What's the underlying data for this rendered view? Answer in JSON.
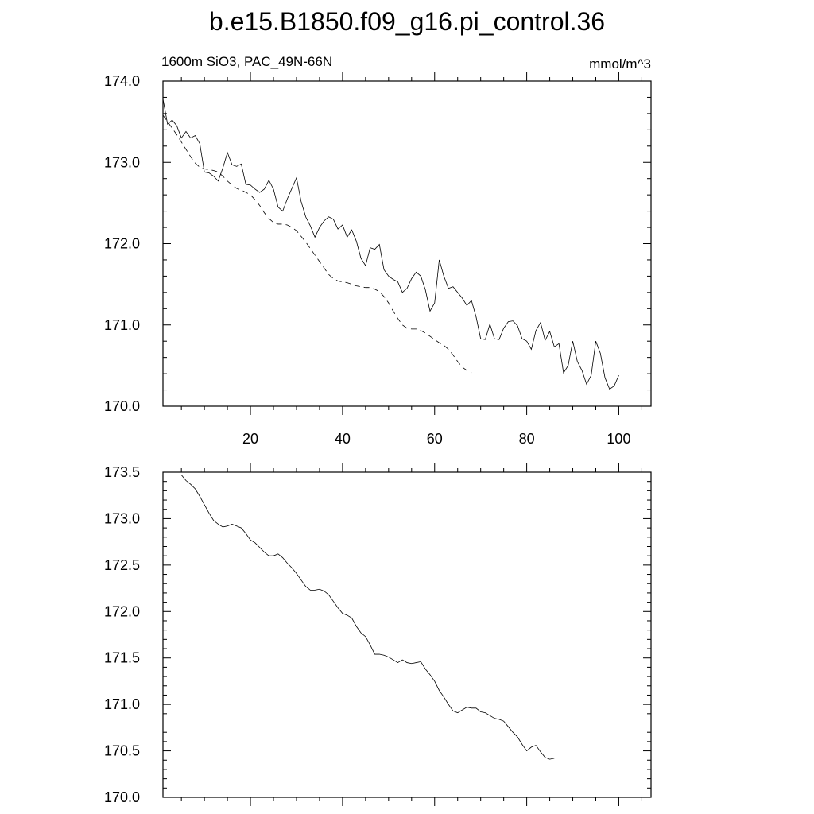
{
  "title": "b.e15.B1850.f09_g16.pi_control.36",
  "chart_data": [
    {
      "type": "line",
      "subtitle_left": "1600m SiO3, PAC_49N-66N",
      "subtitle_right": "mmol/m^3",
      "xlim": [
        1,
        107
      ],
      "ylim": [
        170.0,
        174.0
      ],
      "x_ticks": [
        20,
        40,
        60,
        80,
        100
      ],
      "x_tick_labels": [
        "20",
        "40",
        "60",
        "80",
        "100"
      ],
      "y_ticks": [
        170.0,
        171.0,
        172.0,
        173.0,
        174.0
      ],
      "y_tick_labels": [
        "170.0",
        "171.0",
        "172.0",
        "173.0",
        "174.0"
      ],
      "y_minor_step": 0.2,
      "series": [
        {
          "style": "solid",
          "x_start": 1,
          "values": [
            173.78,
            173.47,
            173.52,
            173.45,
            173.3,
            173.38,
            173.3,
            173.33,
            173.23,
            172.88,
            172.87,
            172.83,
            172.77,
            172.93,
            173.12,
            172.97,
            172.95,
            172.98,
            172.73,
            172.72,
            172.67,
            172.63,
            172.67,
            172.78,
            172.67,
            172.45,
            172.4,
            172.55,
            172.68,
            172.81,
            172.52,
            172.33,
            172.22,
            172.08,
            172.2,
            172.28,
            172.33,
            172.3,
            172.18,
            172.23,
            172.08,
            172.17,
            172.03,
            171.82,
            171.73,
            171.95,
            171.93,
            171.99,
            171.68,
            171.6,
            171.56,
            171.53,
            171.4,
            171.45,
            171.57,
            171.65,
            171.6,
            171.43,
            171.17,
            171.27,
            171.8,
            171.6,
            171.45,
            171.47,
            171.4,
            171.33,
            171.24,
            171.3,
            171.1,
            170.83,
            170.82,
            171.01,
            170.83,
            170.82,
            170.96,
            171.04,
            171.05,
            170.99,
            170.83,
            170.8,
            170.7,
            170.93,
            171.03,
            170.81,
            170.92,
            170.73,
            170.77,
            170.41,
            170.5,
            170.8,
            170.55,
            170.44,
            170.27,
            170.38,
            170.8,
            170.65,
            170.35,
            170.21,
            170.25,
            170.38
          ]
        },
        {
          "style": "dashed",
          "x_start": 1,
          "values": [
            173.58,
            173.5,
            173.42,
            173.34,
            173.25,
            173.16,
            173.07,
            172.99,
            172.94,
            172.92,
            172.91,
            172.9,
            172.88,
            172.83,
            172.77,
            172.72,
            172.68,
            172.66,
            172.63,
            172.6,
            172.54,
            172.47,
            172.38,
            172.31,
            172.26,
            172.24,
            172.24,
            172.23,
            172.2,
            172.16,
            172.09,
            172.02,
            171.94,
            171.86,
            171.78,
            171.7,
            171.62,
            171.57,
            171.54,
            171.53,
            171.52,
            171.5,
            171.48,
            171.47,
            171.46,
            171.46,
            171.44,
            171.41,
            171.35,
            171.27,
            171.17,
            171.08,
            171.0,
            170.96,
            170.95,
            170.95,
            170.93,
            170.9,
            170.86,
            170.82,
            170.78,
            170.75,
            170.7,
            170.63,
            170.55,
            170.48,
            170.44,
            170.41
          ]
        }
      ]
    },
    {
      "type": "line",
      "xlim": [
        1,
        107
      ],
      "ylim": [
        170.0,
        173.5
      ],
      "x_ticks": [
        20,
        40,
        60,
        80,
        100
      ],
      "y_ticks": [
        170.0,
        170.5,
        171.0,
        171.5,
        172.0,
        172.5,
        173.0,
        173.5
      ],
      "y_tick_labels": [
        "170.0",
        "170.5",
        "171.0",
        "171.5",
        "172.0",
        "172.5",
        "173.0",
        "173.5"
      ],
      "y_minor_step": 0.1,
      "series": [
        {
          "style": "solid",
          "x_start": 5,
          "values": [
            173.47,
            173.41,
            173.37,
            173.32,
            173.24,
            173.15,
            173.06,
            172.98,
            172.94,
            172.91,
            172.92,
            172.94,
            172.92,
            172.9,
            172.84,
            172.77,
            172.74,
            172.69,
            172.64,
            172.6,
            172.6,
            172.62,
            172.58,
            172.52,
            172.47,
            172.41,
            172.34,
            172.27,
            172.23,
            172.23,
            172.24,
            172.22,
            172.18,
            172.11,
            172.04,
            171.98,
            171.96,
            171.93,
            171.84,
            171.77,
            171.73,
            171.64,
            171.54,
            171.54,
            171.53,
            171.51,
            171.48,
            171.45,
            171.48,
            171.45,
            171.44,
            171.45,
            171.46,
            171.38,
            171.32,
            171.25,
            171.15,
            171.08,
            171.0,
            170.93,
            170.91,
            170.94,
            170.97,
            170.96,
            170.96,
            170.92,
            170.91,
            170.88,
            170.85,
            170.84,
            170.82,
            170.76,
            170.7,
            170.65,
            170.57,
            170.5,
            170.54,
            170.56,
            170.49,
            170.43,
            170.41,
            170.42
          ]
        }
      ]
    }
  ]
}
